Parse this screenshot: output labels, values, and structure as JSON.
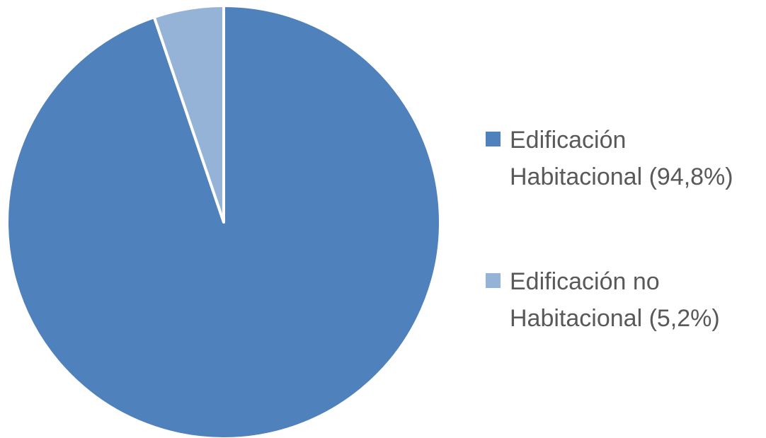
{
  "chart_data": {
    "type": "pie",
    "title": "",
    "start_angle_deg": 0,
    "direction": "clockwise",
    "slices": [
      {
        "label": "Edificación\nHabitacional (94,8%)",
        "value": 94.8,
        "color": "#4f81bd"
      },
      {
        "label": "Edificación no\nHabitacional (5,2%)",
        "value": 5.2,
        "color": "#95b3d7"
      }
    ],
    "legend": {
      "position": "right"
    },
    "slice_border_color": "#ffffff"
  }
}
